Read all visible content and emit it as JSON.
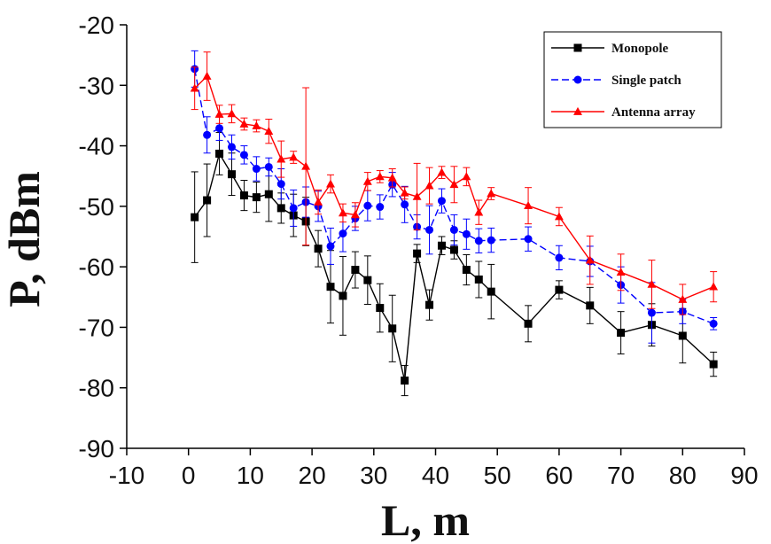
{
  "chart_data": {
    "type": "line",
    "xlabel": "L, m",
    "ylabel": "P, dBm",
    "xlim": [
      -10,
      90
    ],
    "ylim": [
      -90,
      -20
    ],
    "xticks": [
      -10,
      0,
      10,
      20,
      30,
      40,
      50,
      60,
      70,
      80,
      90
    ],
    "yticks": [
      -20,
      -30,
      -40,
      -50,
      -60,
      -70,
      -80,
      -90
    ],
    "legend_position": "top-right",
    "series": [
      {
        "name": "Monopole",
        "color": "#000000",
        "marker": "square",
        "line_style": "solid",
        "x": [
          1,
          3,
          5,
          7,
          9,
          11,
          13,
          15,
          17,
          19,
          21,
          23,
          25,
          27,
          29,
          31,
          33,
          35,
          37,
          39,
          41,
          43,
          45,
          47,
          49,
          55,
          60,
          65,
          70,
          75,
          80,
          85
        ],
        "y": [
          -51.8,
          -49,
          -41.3,
          -44.7,
          -48.2,
          -48.5,
          -48,
          -50.3,
          -51.5,
          -52.5,
          -57,
          -63.3,
          -64.8,
          -60.5,
          -62.2,
          -66.8,
          -70.2,
          -78.8,
          -57.8,
          -66.3,
          -56.5,
          -57.2,
          -60.5,
          -62.1,
          -64.1,
          -69.4,
          -63.8,
          -66.4,
          -70.9,
          -69.6,
          -71.4,
          -76.1
        ],
        "err": [
          7.5,
          6,
          3.5,
          3.5,
          2.5,
          2.5,
          4.5,
          2.5,
          3.5,
          4,
          3,
          6,
          6.5,
          3,
          4,
          4,
          5.5,
          2.5,
          1.5,
          2.5,
          1.5,
          1.5,
          2.5,
          3,
          4.5,
          3,
          1.5,
          3,
          3.5,
          3.5,
          4.5,
          2
        ]
      },
      {
        "name": "Single patch",
        "color": "#0000ff",
        "marker": "circle",
        "line_style": "dashed",
        "x": [
          1,
          3,
          5,
          7,
          9,
          11,
          13,
          15,
          17,
          19,
          21,
          23,
          25,
          27,
          29,
          31,
          33,
          35,
          37,
          39,
          41,
          43,
          45,
          47,
          49,
          55,
          60,
          65,
          70,
          75,
          80,
          85
        ],
        "y": [
          -27.3,
          -38.2,
          -37.1,
          -40.2,
          -41.5,
          -43.8,
          -43.5,
          -46.3,
          -50.3,
          -49.3,
          -50,
          -56.6,
          -54.5,
          -52,
          -49.9,
          -50.1,
          -46.4,
          -49.7,
          -53.4,
          -53.9,
          -49.1,
          -53.9,
          -54.6,
          -55.7,
          -55.6,
          -55.4,
          -58.5,
          -59.1,
          -63,
          -67.6,
          -67.4,
          -69.4
        ],
        "err": [
          3,
          3,
          2,
          2,
          1.5,
          2,
          1.5,
          2.5,
          3,
          2.5,
          2.5,
          3,
          3,
          2,
          2.5,
          2,
          2,
          3,
          2,
          4,
          2,
          2.5,
          2.5,
          2,
          2,
          2,
          2,
          2.5,
          3,
          5,
          2,
          1
        ]
      },
      {
        "name": "Antenna array",
        "color": "#ff0000",
        "marker": "triangle",
        "line_style": "solid",
        "x": [
          1,
          3,
          5,
          7,
          9,
          11,
          13,
          15,
          17,
          19,
          21,
          23,
          25,
          27,
          29,
          31,
          33,
          35,
          37,
          39,
          41,
          43,
          45,
          47,
          49,
          55,
          60,
          65,
          70,
          75,
          80,
          85
        ],
        "y": [
          -30.5,
          -28.5,
          -34.8,
          -34.7,
          -36.4,
          -36.7,
          -37.6,
          -42.2,
          -41.9,
          -43.4,
          -49.3,
          -46.3,
          -51.1,
          -51.4,
          -45.9,
          -45.1,
          -45.3,
          -47.8,
          -48.4,
          -46.6,
          -44.4,
          -46.4,
          -45.1,
          -51,
          -47.9,
          -49.9,
          -51.7,
          -58.9,
          -60.9,
          -62.9,
          -65.4,
          -63.3
        ],
        "err": [
          3.5,
          4,
          1.5,
          1.5,
          1,
          1,
          2,
          3,
          1,
          13,
          2,
          1.5,
          1.5,
          2,
          1.5,
          1,
          1.5,
          1,
          5.5,
          3,
          1,
          3,
          1.5,
          2,
          1,
          3,
          1.5,
          4,
          3,
          4,
          2.5,
          2.5
        ]
      }
    ]
  }
}
